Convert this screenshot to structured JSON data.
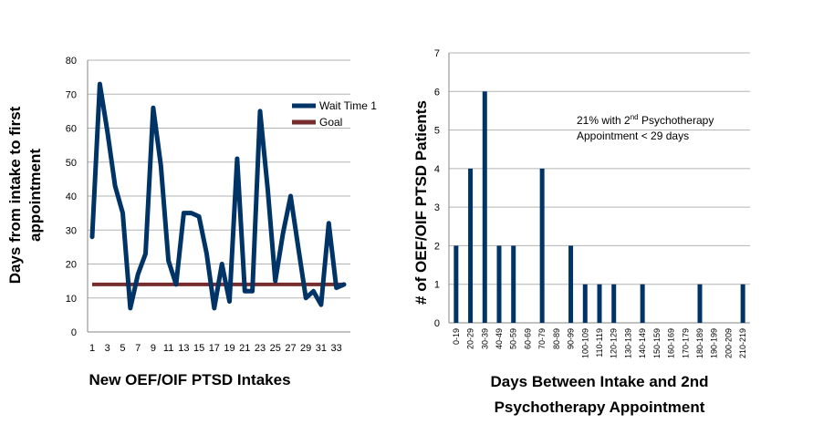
{
  "colors": {
    "series_blue": "#003366",
    "goal_red": "#772d2d",
    "grid": "#b3b3b3",
    "axis": "#868686"
  },
  "chart_data": [
    {
      "type": "line",
      "xlabel": "New OEF/OIF PTSD Intakes",
      "ylabel_lines": [
        "Days from intake to first",
        "appointment"
      ],
      "ylim": [
        0,
        80
      ],
      "yticks": [
        0,
        10,
        20,
        30,
        40,
        50,
        60,
        70,
        80
      ],
      "xlim": [
        1,
        34
      ],
      "xtick_labels": [
        "1",
        "3",
        "5",
        "7",
        "9",
        "11",
        "13",
        "15",
        "17",
        "19",
        "21",
        "23",
        "25",
        "27",
        "29",
        "31",
        "33"
      ],
      "grid": true,
      "legend_position": "right",
      "series": [
        {
          "name": "Wait Time 1",
          "color": "#003366",
          "x": [
            1,
            2,
            3,
            4,
            5,
            6,
            7,
            8,
            9,
            10,
            11,
            12,
            13,
            14,
            15,
            16,
            17,
            18,
            19,
            20,
            21,
            22,
            23,
            24,
            25,
            26,
            27,
            28,
            29,
            30,
            31,
            32,
            33,
            34
          ],
          "y": [
            28,
            73,
            59,
            43,
            35,
            7,
            17,
            23,
            66,
            49,
            21,
            14,
            35,
            35,
            34,
            23,
            7,
            20,
            9,
            51,
            12,
            12,
            65,
            42,
            15,
            29,
            40,
            25,
            10,
            12,
            8,
            32,
            13,
            14
          ]
        },
        {
          "name": "Goal",
          "color": "#772d2d",
          "x": [
            1,
            34
          ],
          "y": [
            14,
            14
          ]
        }
      ]
    },
    {
      "type": "bar",
      "xlabel_lines": [
        "Days Between Intake and 2nd",
        "Psychotherapy Appointment"
      ],
      "ylabel": "# of OEF/OIF PTSD Patients",
      "ylim": [
        0,
        7
      ],
      "yticks": [
        0,
        1,
        2,
        3,
        4,
        5,
        6,
        7
      ],
      "grid": true,
      "categories": [
        "0-19",
        "20-29",
        "30-39",
        "40-49",
        "50-59",
        "60-69",
        "70-79",
        "80-89",
        "90-99",
        "100-109",
        "110-119",
        "120-129",
        "130-139",
        "140-149",
        "150-159",
        "160-169",
        "170-179",
        "180-189",
        "190-199",
        "200-209",
        "210-219"
      ],
      "values": [
        2,
        4,
        6,
        2,
        2,
        0,
        4,
        0,
        2,
        1,
        1,
        1,
        0,
        1,
        0,
        0,
        0,
        1,
        0,
        0,
        1
      ],
      "color": "#003366",
      "annotation": {
        "line1_pre": "21% with 2",
        "line1_sup": "nd",
        "line1_post": " Psychotherapy",
        "line2": "Appointment < 29 days"
      }
    }
  ]
}
